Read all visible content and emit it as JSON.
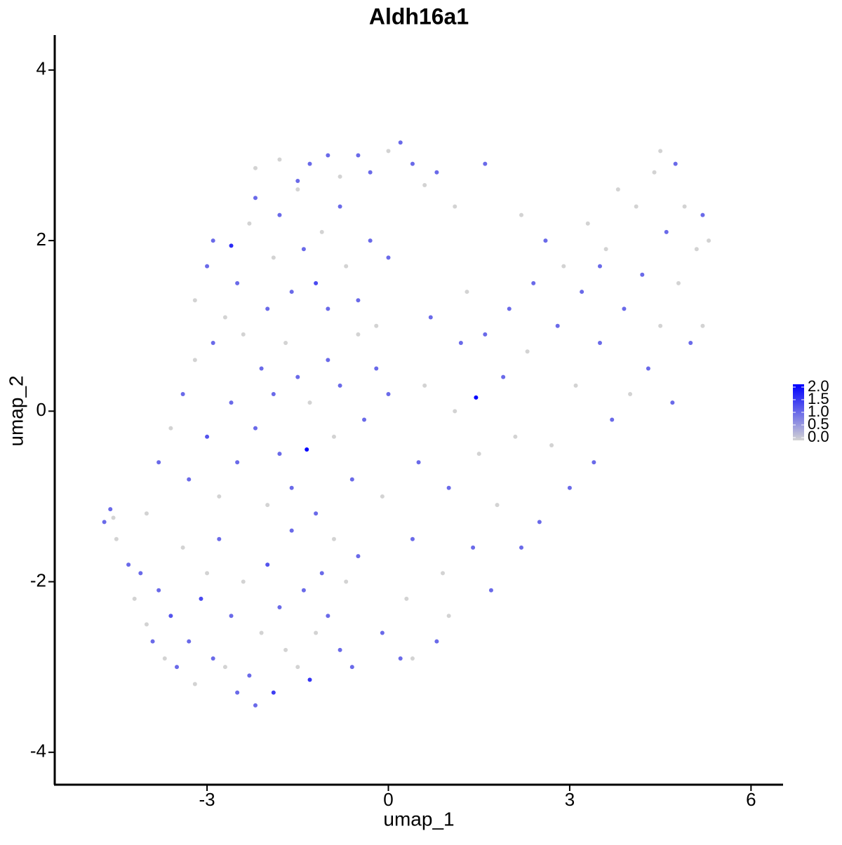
{
  "chart_data": {
    "type": "scatter",
    "title": "Aldh16a1",
    "x_label": "umap_1",
    "y_label": "umap_2",
    "xlim": [
      -5.52,
      6.53
    ],
    "ylim": [
      -4.38,
      4.41
    ],
    "xticks": [
      -3,
      0,
      3,
      6
    ],
    "yticks": [
      -4,
      -2,
      0,
      2,
      4
    ],
    "color_low": "#d3d3d3",
    "color_high": "#0000ff",
    "clim": [
      0,
      2
    ],
    "cticks": [
      {
        "value": 0,
        "label": "0.0"
      },
      {
        "value": 0.5,
        "label": "0.5"
      },
      {
        "value": 1,
        "label": "1.0"
      },
      {
        "value": 1.5,
        "label": "1.5"
      },
      {
        "value": 2,
        "label": "2.0"
      }
    ],
    "x": [
      -4.7,
      -4.6,
      -4.55,
      -4.5,
      -4.3,
      -4.2,
      -4.1,
      -4.0,
      -3.9,
      -3.8,
      -3.7,
      -3.6,
      -3.5,
      -3.4,
      -3.3,
      -3.2,
      -3.1,
      -3.0,
      -2.9,
      -2.8,
      -2.7,
      -2.6,
      -2.5,
      -2.4,
      -2.3,
      -2.2,
      -2.1,
      -2.0,
      -1.9,
      -1.8,
      -1.7,
      -1.6,
      -1.5,
      -1.4,
      -1.3,
      -1.2,
      -1.1,
      -1.0,
      -0.9,
      -0.8,
      -0.7,
      -0.6,
      -0.5,
      -4.0,
      -3.8,
      -3.6,
      -3.4,
      -3.3,
      -3.2,
      -3.0,
      -2.9,
      -2.8,
      -2.6,
      -2.5,
      -2.4,
      -2.2,
      -2.1,
      -2.0,
      -1.9,
      -1.8,
      -1.7,
      -1.6,
      -1.5,
      -1.35,
      -1.3,
      -1.2,
      -1.0,
      -0.9,
      -0.8,
      -0.6,
      -0.5,
      -0.4,
      -0.2,
      -0.1,
      0.0,
      -3.2,
      -3.0,
      -2.9,
      -2.7,
      -2.6,
      -2.5,
      -2.3,
      -2.2,
      -2.0,
      -1.9,
      -1.8,
      -1.6,
      -1.5,
      -1.4,
      -1.2,
      -1.1,
      -1.0,
      -0.8,
      -0.7,
      -0.5,
      -0.3,
      -0.2,
      0.0,
      -2.2,
      -1.8,
      -1.5,
      -1.3,
      -1.0,
      -0.8,
      -0.5,
      -0.3,
      0.0,
      0.2,
      0.4,
      0.6,
      0.8,
      1.1,
      1.6,
      0.2,
      0.3,
      0.4,
      0.5,
      0.6,
      0.7,
      0.8,
      0.9,
      1.0,
      1.1,
      1.2,
      1.3,
      1.4,
      1.45,
      1.5,
      1.6,
      1.7,
      1.8,
      1.9,
      2.0,
      2.1,
      2.2,
      2.3,
      2.4,
      1.0,
      0.4,
      -0.1,
      2.5,
      2.7,
      2.8,
      2.9,
      3.0,
      3.1,
      3.2,
      3.3,
      3.4,
      3.5,
      3.6,
      3.7,
      3.8,
      3.9,
      4.0,
      4.1,
      4.2,
      4.3,
      4.4,
      4.5,
      4.6,
      4.7,
      4.75,
      4.8,
      4.9,
      5.0,
      5.1,
      5.2,
      5.3,
      5.2,
      4.5,
      2.2,
      2.6,
      3.5
    ],
    "values": [
      -1.3,
      -1.15,
      -1.25,
      -1.5,
      -1.8,
      -2.2,
      -1.9,
      -2.5,
      -2.7,
      -2.1,
      -2.9,
      -2.4,
      -3.0,
      -1.6,
      -2.7,
      -3.2,
      -2.2,
      -1.9,
      -2.9,
      -1.5,
      -3.0,
      -2.4,
      -3.3,
      -2.0,
      -3.1,
      -3.45,
      -2.6,
      -1.8,
      -3.3,
      -2.3,
      -2.8,
      -1.4,
      -3.0,
      -2.1,
      -3.15,
      -2.6,
      -1.9,
      -2.4,
      -1.5,
      -2.8,
      -2.0,
      -3.0,
      -1.7,
      -1.2,
      -0.6,
      -0.2,
      0.2,
      -0.8,
      0.6,
      -0.3,
      0.8,
      -1.0,
      0.1,
      -0.6,
      0.9,
      -0.2,
      0.5,
      -1.1,
      0.2,
      -0.5,
      0.8,
      -0.9,
      0.4,
      -0.45,
      0.1,
      -1.2,
      0.6,
      -0.3,
      0.3,
      -0.8,
      0.9,
      -0.1,
      0.5,
      -1.0,
      0.2,
      1.3,
      1.7,
      2.0,
      1.1,
      1.94,
      1.5,
      2.2,
      2.5,
      1.2,
      1.8,
      2.3,
      1.4,
      2.6,
      1.9,
      1.5,
      2.1,
      1.2,
      2.4,
      1.7,
      1.3,
      2.0,
      1.0,
      1.8,
      2.85,
      2.95,
      2.7,
      2.9,
      3.0,
      2.75,
      3.0,
      2.8,
      3.05,
      3.15,
      2.9,
      2.65,
      2.8,
      2.4,
      2.9,
      -2.9,
      -2.2,
      -1.5,
      -0.6,
      0.3,
      1.1,
      -2.7,
      -1.9,
      -0.9,
      0.0,
      0.8,
      1.4,
      -1.6,
      0.16,
      -0.5,
      0.9,
      -2.1,
      -1.1,
      0.4,
      1.2,
      -0.3,
      -1.6,
      0.7,
      1.5,
      -2.4,
      -2.9,
      -2.6,
      -1.3,
      -0.4,
      1.0,
      1.7,
      -0.9,
      0.3,
      1.4,
      2.2,
      -0.6,
      0.8,
      1.9,
      -0.1,
      2.6,
      1.2,
      0.2,
      2.4,
      1.6,
      0.5,
      2.8,
      1.0,
      2.1,
      0.1,
      2.9,
      1.5,
      2.4,
      0.8,
      1.9,
      2.3,
      2.0,
      1.0,
      3.05,
      2.3,
      2.0,
      1.7
    ],
    "expression": [
      1,
      1,
      0,
      0,
      1,
      0,
      1,
      0,
      1,
      1,
      0,
      1.2,
      1,
      0,
      1,
      0,
      1.3,
      0,
      1,
      1,
      0,
      1,
      1,
      0,
      1,
      1,
      0,
      1.2,
      1.4,
      1,
      0,
      1,
      0,
      1,
      1.5,
      0,
      1,
      1,
      0,
      1,
      0,
      1,
      1,
      0,
      1,
      0,
      1,
      1,
      0,
      1.2,
      1,
      0,
      1,
      1,
      0,
      1,
      1,
      0,
      1,
      1,
      0,
      1,
      1,
      2,
      0,
      1,
      1,
      0,
      1,
      1,
      0,
      1,
      1,
      0,
      1,
      0,
      1,
      1,
      0,
      1.6,
      1,
      0,
      1,
      1,
      0,
      1,
      1,
      0,
      1,
      1.3,
      0,
      1,
      1,
      0,
      1,
      1,
      0,
      1,
      0,
      0,
      1,
      1,
      1,
      0,
      1,
      1,
      0,
      1,
      1,
      0,
      1,
      0,
      1,
      1,
      0,
      1,
      1,
      0,
      1,
      1,
      0,
      1,
      0,
      1,
      0,
      1,
      2,
      0,
      1,
      1,
      0,
      1,
      1,
      0,
      1,
      0,
      1,
      0,
      0,
      1,
      1,
      0,
      1,
      0,
      1,
      0,
      1,
      0,
      1,
      1,
      0,
      1,
      0,
      1,
      0,
      0,
      1,
      1,
      0,
      0,
      1,
      1,
      1,
      0,
      0,
      1,
      0,
      1,
      0,
      0,
      0,
      0,
      1,
      1
    ]
  }
}
